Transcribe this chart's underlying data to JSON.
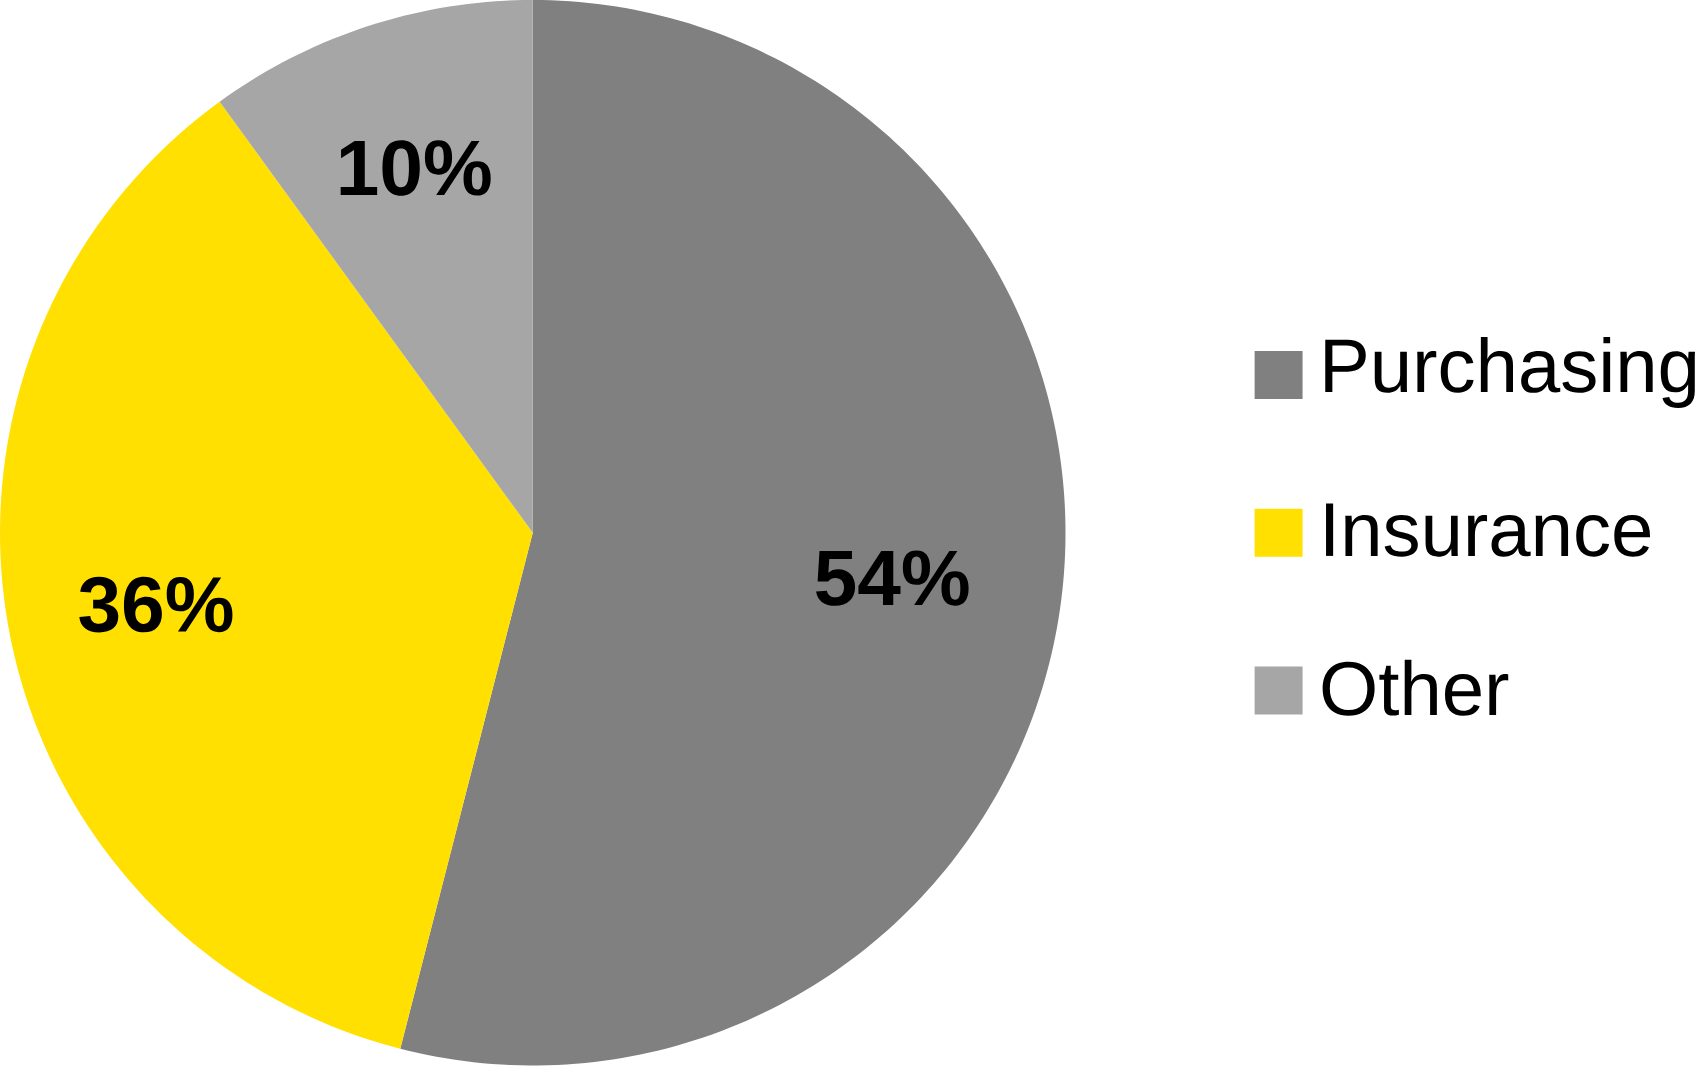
{
  "chart_data": {
    "type": "pie",
    "categories": [
      "Purchasing",
      "Insurance",
      "Other"
    ],
    "values": [
      54,
      36,
      10
    ],
    "colors": [
      "#808080",
      "#ffe000",
      "#a6a6a6"
    ],
    "value_labels": [
      "54%",
      "36%",
      "10%"
    ],
    "legend": "right"
  }
}
